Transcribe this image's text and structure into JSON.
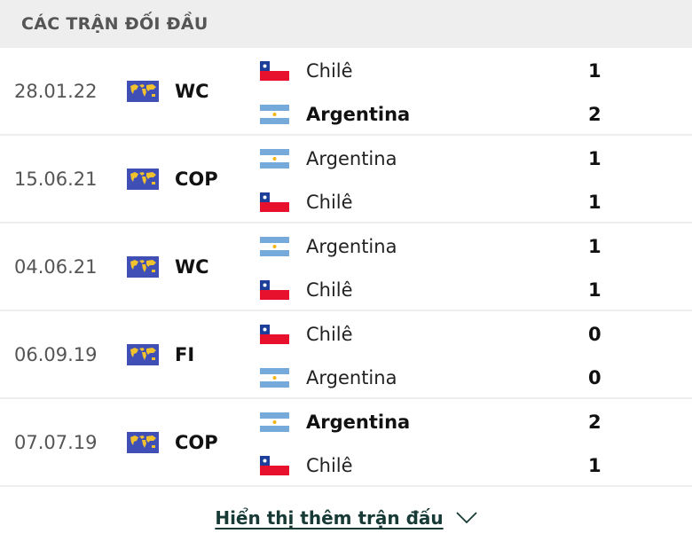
{
  "header": {
    "title": "CÁC TRẬN ĐỐI ĐẦU"
  },
  "matches": [
    {
      "date": "28.01.22",
      "competition": "WC",
      "teams": [
        {
          "name": "Chilê",
          "flag": "chile",
          "score": "1",
          "winner": false
        },
        {
          "name": "Argentina",
          "flag": "argentina",
          "score": "2",
          "winner": true
        }
      ]
    },
    {
      "date": "15.06.21",
      "competition": "COP",
      "teams": [
        {
          "name": "Argentina",
          "flag": "argentina",
          "score": "1",
          "winner": false
        },
        {
          "name": "Chilê",
          "flag": "chile",
          "score": "1",
          "winner": false
        }
      ]
    },
    {
      "date": "04.06.21",
      "competition": "WC",
      "teams": [
        {
          "name": "Argentina",
          "flag": "argentina",
          "score": "1",
          "winner": false
        },
        {
          "name": "Chilê",
          "flag": "chile",
          "score": "1",
          "winner": false
        }
      ]
    },
    {
      "date": "06.09.19",
      "competition": "FI",
      "teams": [
        {
          "name": "Chilê",
          "flag": "chile",
          "score": "0",
          "winner": false
        },
        {
          "name": "Argentina",
          "flag": "argentina",
          "score": "0",
          "winner": false
        }
      ]
    },
    {
      "date": "07.07.19",
      "competition": "COP",
      "teams": [
        {
          "name": "Argentina",
          "flag": "argentina",
          "score": "2",
          "winner": true
        },
        {
          "name": "Chilê",
          "flag": "chile",
          "score": "1",
          "winner": false
        }
      ]
    }
  ],
  "footer": {
    "show_more": "Hiển thị thêm trận đấu",
    "icon": "chevron-down-icon"
  },
  "colors": {
    "header_bg": "#eeeeee",
    "link": "#173a36",
    "world_icon_bg": "#3f4fb5",
    "world_icon_fg": "#f2c12e"
  }
}
